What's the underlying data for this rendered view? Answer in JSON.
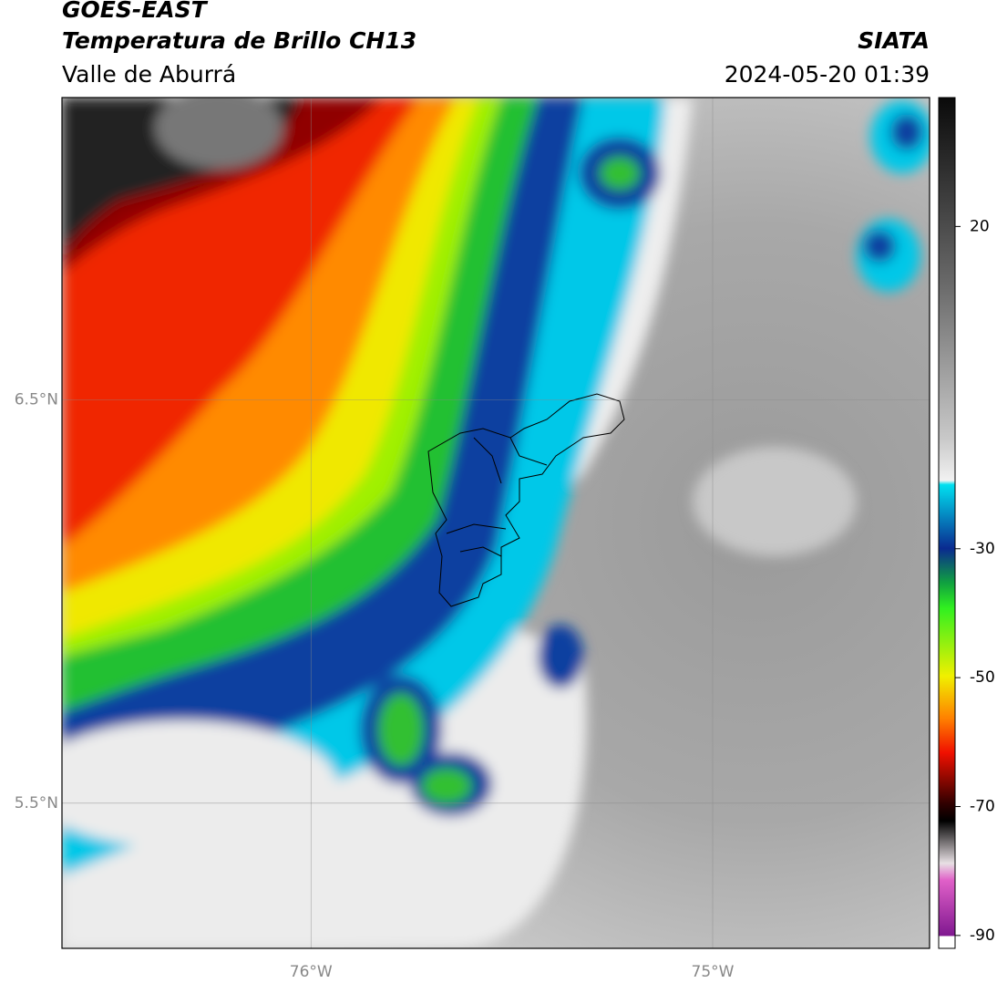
{
  "header": {
    "title": "GOES-EAST",
    "subtitle": "Temperatura de Brillo CH13",
    "region": "Valle de Aburrá",
    "source": "SIATA",
    "datetime": "2024-05-20 01:39"
  },
  "map": {
    "xlim": [
      -76.62,
      -74.46
    ],
    "ylim": [
      5.14,
      7.25
    ],
    "xticks": [
      {
        "value": -76,
        "label": "76°W"
      },
      {
        "value": -75,
        "label": "75°W"
      }
    ],
    "yticks": [
      {
        "value": 6.5,
        "label": "6.5°N"
      },
      {
        "value": 5.5,
        "label": "5.5°N"
      }
    ],
    "grid": true
  },
  "colorbar": {
    "lim": [
      -92,
      40
    ],
    "ticks": [
      20,
      -30,
      -50,
      -70,
      -90
    ]
  }
}
